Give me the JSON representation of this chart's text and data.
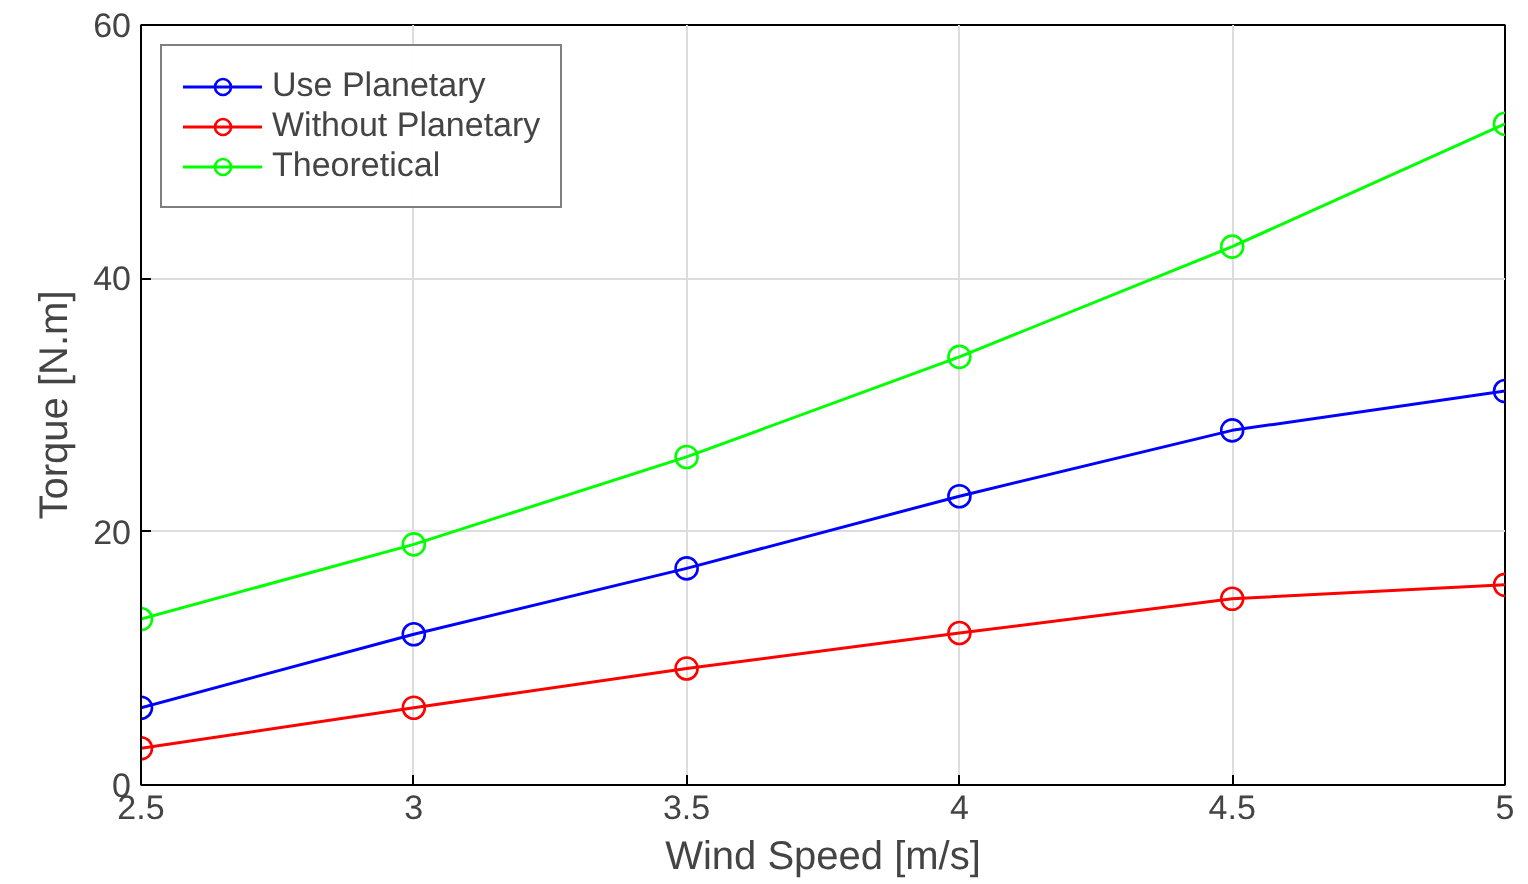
{
  "chart_data": {
    "type": "line",
    "xlabel": "Wind Speed [m/s]",
    "ylabel": "Torque [N.m]",
    "x": [
      2.5,
      3,
      3.5,
      4,
      4.5,
      5
    ],
    "series": [
      {
        "name": "Use Planetary",
        "color": "#0000ff",
        "values": [
          6.1,
          11.9,
          17.1,
          22.8,
          28.0,
          31.1
        ]
      },
      {
        "name": "Without Planetary",
        "color": "#ff0000",
        "values": [
          2.9,
          6.1,
          9.2,
          12.0,
          14.7,
          15.8
        ]
      },
      {
        "name": "Theoretical",
        "color": "#00ff00",
        "values": [
          13.1,
          19.0,
          25.9,
          33.8,
          42.5,
          52.2
        ]
      }
    ],
    "xlim": [
      2.5,
      5
    ],
    "xticks": [
      2.5,
      3,
      3.5,
      4,
      4.5,
      5
    ],
    "ylim": [
      0,
      60
    ],
    "yticks": [
      0,
      20,
      40,
      60
    ],
    "grid": true,
    "legend": "top left",
    "marker": "circle",
    "line_style": "solid"
  }
}
